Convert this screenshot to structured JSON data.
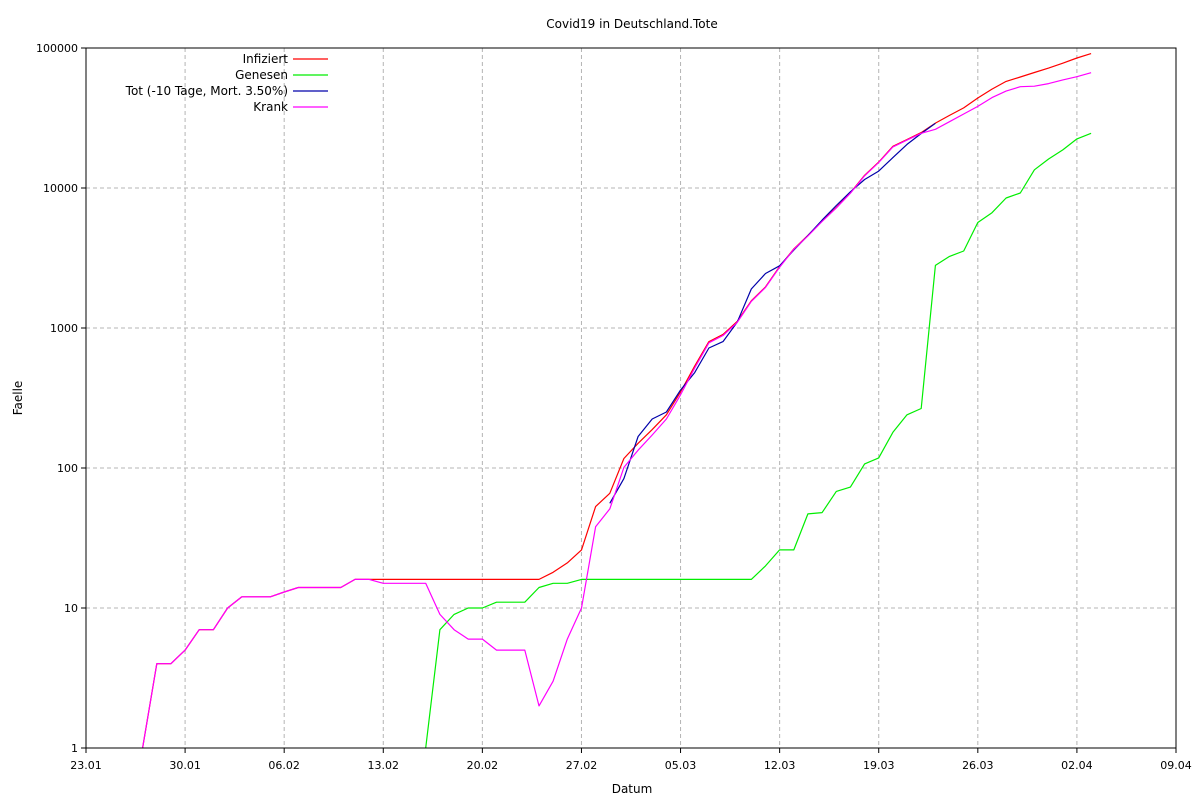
{
  "window_title": "Covid19 in Deutschland.Tote",
  "chart_data": {
    "type": "line",
    "title": "Covid19 in Deutschland.Tote",
    "xlabel": "Datum",
    "ylabel": "Faelle",
    "y_scale": "log",
    "ylim": [
      1,
      100000
    ],
    "xlim": [
      "2020-01-23",
      "2020-04-09"
    ],
    "x_ticks": [
      {
        "date": "2020-01-23",
        "label": "23.01"
      },
      {
        "date": "2020-01-30",
        "label": "30.01"
      },
      {
        "date": "2020-02-06",
        "label": "06.02"
      },
      {
        "date": "2020-02-13",
        "label": "13.02"
      },
      {
        "date": "2020-02-20",
        "label": "20.02"
      },
      {
        "date": "2020-02-27",
        "label": "27.02"
      },
      {
        "date": "2020-03-05",
        "label": "05.03"
      },
      {
        "date": "2020-03-12",
        "label": "12.03"
      },
      {
        "date": "2020-03-19",
        "label": "19.03"
      },
      {
        "date": "2020-03-26",
        "label": "26.03"
      },
      {
        "date": "2020-04-02",
        "label": "02.04"
      },
      {
        "date": "2020-04-09",
        "label": "09.04"
      }
    ],
    "y_ticks": [
      {
        "value": 1,
        "label": "1"
      },
      {
        "value": 10,
        "label": "10"
      },
      {
        "value": 100,
        "label": "100"
      },
      {
        "value": 1000,
        "label": "1000"
      },
      {
        "value": 10000,
        "label": "10000"
      },
      {
        "value": 100000,
        "label": "100000"
      }
    ],
    "grid": true,
    "legend_position": "top-left",
    "series": [
      {
        "name": "Infiziert",
        "color": "#ff0000",
        "points": [
          [
            "2020-01-27",
            1
          ],
          [
            "2020-01-28",
            4
          ],
          [
            "2020-01-29",
            4
          ],
          [
            "2020-01-30",
            5
          ],
          [
            "2020-01-31",
            7
          ],
          [
            "2020-02-01",
            7
          ],
          [
            "2020-02-02",
            10
          ],
          [
            "2020-02-03",
            12
          ],
          [
            "2020-02-04",
            12
          ],
          [
            "2020-02-05",
            12
          ],
          [
            "2020-02-06",
            13
          ],
          [
            "2020-02-07",
            14
          ],
          [
            "2020-02-08",
            14
          ],
          [
            "2020-02-09",
            14
          ],
          [
            "2020-02-10",
            14
          ],
          [
            "2020-02-11",
            16
          ],
          [
            "2020-02-12",
            16
          ],
          [
            "2020-02-13",
            16
          ],
          [
            "2020-02-14",
            16
          ],
          [
            "2020-02-15",
            16
          ],
          [
            "2020-02-16",
            16
          ],
          [
            "2020-02-17",
            16
          ],
          [
            "2020-02-18",
            16
          ],
          [
            "2020-02-19",
            16
          ],
          [
            "2020-02-20",
            16
          ],
          [
            "2020-02-21",
            16
          ],
          [
            "2020-02-22",
            16
          ],
          [
            "2020-02-23",
            16
          ],
          [
            "2020-02-24",
            16
          ],
          [
            "2020-02-25",
            18
          ],
          [
            "2020-02-26",
            21
          ],
          [
            "2020-02-27",
            26
          ],
          [
            "2020-02-28",
            53
          ],
          [
            "2020-02-29",
            66
          ],
          [
            "2020-03-01",
            117
          ],
          [
            "2020-03-02",
            150
          ],
          [
            "2020-03-03",
            188
          ],
          [
            "2020-03-04",
            240
          ],
          [
            "2020-03-05",
            349
          ],
          [
            "2020-03-06",
            534
          ],
          [
            "2020-03-07",
            800
          ],
          [
            "2020-03-08",
            900
          ],
          [
            "2020-03-09",
            1112
          ],
          [
            "2020-03-10",
            1565
          ],
          [
            "2020-03-11",
            1966
          ],
          [
            "2020-03-12",
            2745
          ],
          [
            "2020-03-13",
            3675
          ],
          [
            "2020-03-14",
            4585
          ],
          [
            "2020-03-15",
            5813
          ],
          [
            "2020-03-16",
            7272
          ],
          [
            "2020-03-17",
            9257
          ],
          [
            "2020-03-18",
            12327
          ],
          [
            "2020-03-19",
            15320
          ],
          [
            "2020-03-20",
            19848
          ],
          [
            "2020-03-21",
            22213
          ],
          [
            "2020-03-22",
            24873
          ],
          [
            "2020-03-23",
            29056
          ],
          [
            "2020-03-24",
            32986
          ],
          [
            "2020-03-25",
            37323
          ],
          [
            "2020-03-26",
            43938
          ],
          [
            "2020-03-27",
            50871
          ],
          [
            "2020-03-28",
            57695
          ],
          [
            "2020-03-29",
            62095
          ],
          [
            "2020-03-30",
            66885
          ],
          [
            "2020-03-31",
            71808
          ],
          [
            "2020-04-01",
            77872
          ],
          [
            "2020-04-02",
            84794
          ],
          [
            "2020-04-03",
            91159
          ]
        ]
      },
      {
        "name": "Genesen",
        "color": "#00ee00",
        "points": [
          [
            "2020-02-16",
            1
          ],
          [
            "2020-02-17",
            7
          ],
          [
            "2020-02-18",
            9
          ],
          [
            "2020-02-19",
            10
          ],
          [
            "2020-02-20",
            10
          ],
          [
            "2020-02-21",
            11
          ],
          [
            "2020-02-22",
            11
          ],
          [
            "2020-02-23",
            11
          ],
          [
            "2020-02-24",
            14
          ],
          [
            "2020-02-25",
            15
          ],
          [
            "2020-02-26",
            15
          ],
          [
            "2020-02-27",
            16
          ],
          [
            "2020-02-28",
            16
          ],
          [
            "2020-03-10",
            16
          ],
          [
            "2020-03-11",
            20
          ],
          [
            "2020-03-12",
            26
          ],
          [
            "2020-03-13",
            26
          ],
          [
            "2020-03-14",
            47
          ],
          [
            "2020-03-15",
            48
          ],
          [
            "2020-03-16",
            68
          ],
          [
            "2020-03-17",
            73
          ],
          [
            "2020-03-18",
            107
          ],
          [
            "2020-03-19",
            118
          ],
          [
            "2020-03-20",
            180
          ],
          [
            "2020-03-21",
            240
          ],
          [
            "2020-03-22",
            266
          ],
          [
            "2020-03-23",
            2800
          ],
          [
            "2020-03-24",
            3244
          ],
          [
            "2020-03-25",
            3547
          ],
          [
            "2020-03-26",
            5673
          ],
          [
            "2020-03-27",
            6658
          ],
          [
            "2020-03-28",
            8481
          ],
          [
            "2020-03-29",
            9211
          ],
          [
            "2020-03-30",
            13500
          ],
          [
            "2020-03-31",
            16100
          ],
          [
            "2020-04-01",
            18700
          ],
          [
            "2020-04-02",
            22440
          ],
          [
            "2020-04-03",
            24575
          ]
        ]
      },
      {
        "name": "Tot (-10 Tage, Mort. 3.50%)",
        "color": "#0000aa",
        "points": [
          [
            "2020-02-29",
            56
          ],
          [
            "2020-03-01",
            84
          ],
          [
            "2020-03-02",
            168
          ],
          [
            "2020-03-03",
            224
          ],
          [
            "2020-03-04",
            251
          ],
          [
            "2020-03-05",
            360
          ],
          [
            "2020-03-06",
            480
          ],
          [
            "2020-03-07",
            720
          ],
          [
            "2020-03-08",
            800
          ],
          [
            "2020-03-09",
            1100
          ],
          [
            "2020-03-10",
            1900
          ],
          [
            "2020-03-11",
            2450
          ],
          [
            "2020-03-12",
            2780
          ],
          [
            "2020-03-13",
            3600
          ],
          [
            "2020-03-14",
            4580
          ],
          [
            "2020-03-15",
            5900
          ],
          [
            "2020-03-16",
            7500
          ],
          [
            "2020-03-17",
            9400
          ],
          [
            "2020-03-18",
            11500
          ],
          [
            "2020-03-19",
            13200
          ],
          [
            "2020-03-20",
            16500
          ],
          [
            "2020-03-21",
            20500
          ],
          [
            "2020-03-22",
            24500
          ],
          [
            "2020-03-23",
            29000
          ]
        ]
      },
      {
        "name": "Krank",
        "color": "#ff00ff",
        "points": [
          [
            "2020-01-27",
            1
          ],
          [
            "2020-01-28",
            4
          ],
          [
            "2020-01-29",
            4
          ],
          [
            "2020-01-30",
            5
          ],
          [
            "2020-01-31",
            7
          ],
          [
            "2020-02-01",
            7
          ],
          [
            "2020-02-02",
            10
          ],
          [
            "2020-02-03",
            12
          ],
          [
            "2020-02-04",
            12
          ],
          [
            "2020-02-05",
            12
          ],
          [
            "2020-02-06",
            13
          ],
          [
            "2020-02-07",
            14
          ],
          [
            "2020-02-08",
            14
          ],
          [
            "2020-02-09",
            14
          ],
          [
            "2020-02-10",
            14
          ],
          [
            "2020-02-11",
            16
          ],
          [
            "2020-02-12",
            16
          ],
          [
            "2020-02-13",
            15
          ],
          [
            "2020-02-14",
            15
          ],
          [
            "2020-02-15",
            15
          ],
          [
            "2020-02-16",
            15
          ],
          [
            "2020-02-17",
            9
          ],
          [
            "2020-02-18",
            7
          ],
          [
            "2020-02-19",
            6
          ],
          [
            "2020-02-20",
            6
          ],
          [
            "2020-02-21",
            5
          ],
          [
            "2020-02-22",
            5
          ],
          [
            "2020-02-23",
            5
          ],
          [
            "2020-02-24",
            2
          ],
          [
            "2020-02-25",
            3
          ],
          [
            "2020-02-26",
            6
          ],
          [
            "2020-02-27",
            10
          ],
          [
            "2020-02-28",
            38
          ],
          [
            "2020-02-29",
            51
          ],
          [
            "2020-03-01",
            101
          ],
          [
            "2020-03-02",
            134
          ],
          [
            "2020-03-03",
            172
          ],
          [
            "2020-03-04",
            224
          ],
          [
            "2020-03-05",
            333
          ],
          [
            "2020-03-06",
            518
          ],
          [
            "2020-03-07",
            784
          ],
          [
            "2020-03-08",
            884
          ],
          [
            "2020-03-09",
            1096
          ],
          [
            "2020-03-10",
            1549
          ],
          [
            "2020-03-11",
            1950
          ],
          [
            "2020-03-12",
            2719
          ],
          [
            "2020-03-13",
            3649
          ],
          [
            "2020-03-14",
            4538
          ],
          [
            "2020-03-15",
            5765
          ],
          [
            "2020-03-16",
            7204
          ],
          [
            "2020-03-17",
            9184
          ],
          [
            "2020-03-18",
            12220
          ],
          [
            "2020-03-19",
            15202
          ],
          [
            "2020-03-20",
            19668
          ],
          [
            "2020-03-21",
            21973
          ],
          [
            "2020-03-22",
            24607
          ],
          [
            "2020-03-23",
            26256
          ],
          [
            "2020-03-24",
            29742
          ],
          [
            "2020-03-25",
            33776
          ],
          [
            "2020-03-26",
            38265
          ],
          [
            "2020-03-27",
            44213
          ],
          [
            "2020-03-28",
            49214
          ],
          [
            "2020-03-29",
            52884
          ],
          [
            "2020-03-30",
            53385
          ],
          [
            "2020-03-31",
            55708
          ],
          [
            "2020-04-01",
            59172
          ],
          [
            "2020-04-02",
            62354
          ],
          [
            "2020-04-03",
            66584
          ]
        ]
      }
    ]
  }
}
